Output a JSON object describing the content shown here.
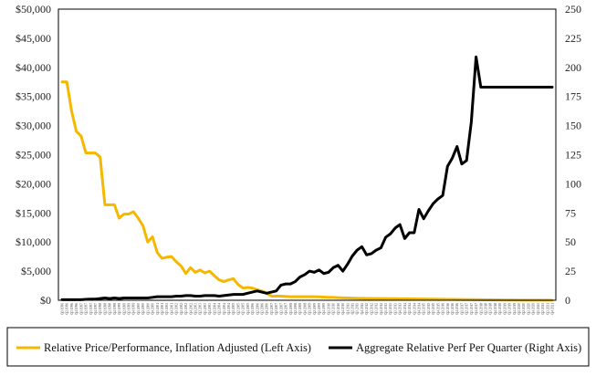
{
  "chart_data": {
    "type": "line",
    "title": "",
    "xlabel": "",
    "ylabel_left": "",
    "ylabel_right": "",
    "ylim_left": [
      0,
      50000
    ],
    "ylim_right": [
      0,
      250
    ],
    "left_ticks": [
      "$0",
      "$5,000",
      "$10,000",
      "$15,000",
      "$20,000",
      "$25,000",
      "$30,000",
      "$35,000",
      "$40,000",
      "$45,000",
      "$50,000"
    ],
    "right_ticks": [
      "0",
      "25",
      "50",
      "75",
      "100",
      "125",
      "150",
      "175",
      "200",
      "225",
      "250"
    ],
    "grid": false,
    "legend_position": "bottom",
    "x": [
      "Q1 1996",
      "Q2 1996",
      "Q3 1996",
      "Q4 1996",
      "Q1 1997",
      "Q2 1997",
      "Q3 1997",
      "Q4 1997",
      "Q1 1998",
      "Q2 1998",
      "Q3 1998",
      "Q4 1998",
      "Q1 1999",
      "Q2 1999",
      "Q3 1999",
      "Q4 1999",
      "Q1 2000",
      "Q2 2000",
      "Q3 2000",
      "Q4 2000",
      "Q1 2001",
      "Q2 2001",
      "Q3 2001",
      "Q4 2001",
      "Q1 2002",
      "Q2 2002",
      "Q3 2002",
      "Q4 2002",
      "Q1 2003",
      "Q2 2003",
      "Q3 2003",
      "Q4 2003",
      "Q1 2004",
      "Q2 2004",
      "Q3 2004",
      "Q4 2004",
      "Q1 2005",
      "Q2 2005",
      "Q3 2005",
      "Q4 2005",
      "Q1 2006",
      "Q2 2006",
      "Q3 2006",
      "Q4 2006",
      "Q1 2007",
      "Q2 2007",
      "Q3 2007",
      "Q4 2007",
      "Q1 2008",
      "Q2 2008",
      "Q3 2008",
      "Q4 2008",
      "Q1 2009",
      "Q2 2009",
      "Q3 2009",
      "Q4 2009",
      "Q1 2010",
      "Q2 2010",
      "Q3 2010",
      "Q4 2010",
      "Q1 2011",
      "Q2 2011",
      "Q3 2011",
      "Q4 2011",
      "Q1 2012",
      "Q2 2012",
      "Q3 2012",
      "Q4 2012",
      "Q1 2013",
      "Q2 2013",
      "Q3 2013",
      "Q4 2013",
      "Q1 2014",
      "Q2 2014",
      "Q3 2014",
      "Q4 2014",
      "Q1 2015",
      "Q2 2015",
      "Q3 2015",
      "Q4 2015",
      "Q1 2016",
      "Q2 2016",
      "Q3 2016",
      "Q4 2016",
      "Q1 2017",
      "Q2 2017",
      "Q3 2017",
      "Q4 2017",
      "Q1 2018",
      "Q2 2018",
      "Q3 2018",
      "Q4 2018",
      "Q1 2019",
      "Q2 2019",
      "Q3 2019",
      "Q4 2019",
      "Q1 2020",
      "Q2 2020",
      "Q3 2020",
      "Q4 2020",
      "Q1 2021",
      "Q2 2021",
      "Q3 2021",
      "Q4 2021"
    ],
    "series": [
      {
        "name": "Relative Price/Performance, Inflation Adjusted (Left Axis)",
        "axis": "left",
        "color": "#f5b800",
        "values": [
          37500,
          37500,
          32500,
          29000,
          28200,
          25300,
          25300,
          25300,
          24600,
          16400,
          16400,
          16400,
          14100,
          14800,
          14800,
          15200,
          14100,
          12800,
          10000,
          10900,
          8200,
          7200,
          7400,
          7500,
          6600,
          5900,
          4600,
          5600,
          4800,
          5200,
          4700,
          5000,
          4200,
          3500,
          3200,
          3500,
          3700,
          2700,
          2100,
          2200,
          2100,
          1800,
          1600,
          1200,
          700,
          700,
          700,
          650,
          600,
          600,
          600,
          600,
          600,
          600,
          580,
          550,
          500,
          500,
          450,
          420,
          400,
          380,
          350,
          340,
          320,
          310,
          300,
          300,
          290,
          280,
          270,
          260,
          250,
          240,
          230,
          220,
          210,
          200,
          190,
          180,
          170,
          160,
          150,
          140,
          130,
          120,
          110,
          100,
          90,
          80,
          70,
          60,
          50,
          40,
          35,
          30,
          25,
          22,
          20,
          18,
          16,
          14,
          12,
          10
        ]
      },
      {
        "name": "Aggregate Relative Perf Per Quarter (Right Axis)",
        "axis": "right",
        "color": "#000000",
        "values": [
          0.5,
          0.5,
          0.5,
          0.5,
          0.5,
          0.8,
          1,
          1,
          1.5,
          2,
          1.5,
          2,
          1.5,
          2,
          2,
          2,
          2,
          2,
          2,
          2.5,
          3,
          3,
          3,
          3,
          3.5,
          3.5,
          4,
          4,
          3.5,
          3.5,
          4,
          4,
          4,
          3.5,
          4,
          4.5,
          5,
          5,
          5,
          6,
          7,
          8,
          7,
          6,
          7,
          8,
          13,
          14,
          14,
          16,
          20,
          22,
          25,
          24,
          26,
          23,
          24,
          28,
          30,
          25,
          31,
          38,
          43,
          46,
          39,
          40,
          43,
          45,
          54,
          57,
          62,
          65,
          53,
          58,
          58,
          78,
          70,
          77,
          83,
          87,
          90,
          115,
          122,
          132,
          117,
          120,
          153,
          209,
          183,
          183,
          183,
          183,
          183,
          183,
          183,
          183,
          183,
          183,
          183,
          183,
          183,
          183,
          183,
          183
        ]
      }
    ]
  }
}
